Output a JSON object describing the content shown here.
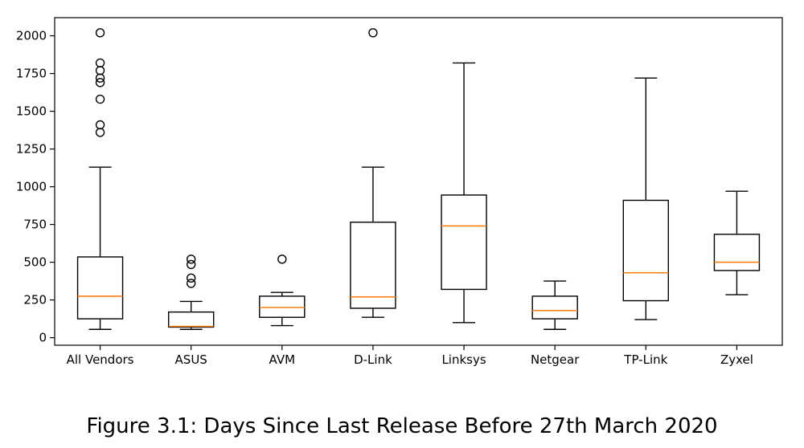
{
  "caption": {
    "label": "Figure 3.1:",
    "text": " Days Since Last Release Before 27th March 2020"
  },
  "chart_data": {
    "type": "box",
    "title": "",
    "xlabel": "",
    "ylabel": "",
    "ylim": [
      -50,
      2120
    ],
    "yticks": [
      0,
      250,
      500,
      750,
      1000,
      1250,
      1500,
      1750,
      2000
    ],
    "grid": false,
    "median_color": "#ff7f0e",
    "box_color": "#000000",
    "categories": [
      "All Vendors",
      "ASUS",
      "AVM",
      "D-Link",
      "Linksys",
      "Netgear",
      "TP-Link",
      "Zyxel"
    ],
    "boxes": [
      {
        "whisker_low": 55,
        "q1": 125,
        "median": 275,
        "q3": 535,
        "whisker_high": 1130,
        "outliers": [
          1360,
          1410,
          1580,
          1690,
          1720,
          1770,
          1820,
          2020
        ]
      },
      {
        "whisker_low": 55,
        "q1": 70,
        "median": 75,
        "q3": 170,
        "whisker_high": 240,
        "outliers": [
          360,
          395,
          485,
          520
        ]
      },
      {
        "whisker_low": 80,
        "q1": 135,
        "median": 200,
        "q3": 275,
        "whisker_high": 300,
        "outliers": [
          520
        ]
      },
      {
        "whisker_low": 135,
        "q1": 195,
        "median": 270,
        "q3": 765,
        "whisker_high": 1130,
        "outliers": [
          2020
        ]
      },
      {
        "whisker_low": 100,
        "q1": 320,
        "median": 740,
        "q3": 945,
        "whisker_high": 1820,
        "outliers": []
      },
      {
        "whisker_low": 55,
        "q1": 125,
        "median": 180,
        "q3": 275,
        "whisker_high": 375,
        "outliers": []
      },
      {
        "whisker_low": 120,
        "q1": 245,
        "median": 430,
        "q3": 910,
        "whisker_high": 1720,
        "outliers": []
      },
      {
        "whisker_low": 285,
        "q1": 445,
        "median": 500,
        "q3": 685,
        "whisker_high": 970,
        "outliers": []
      }
    ]
  }
}
